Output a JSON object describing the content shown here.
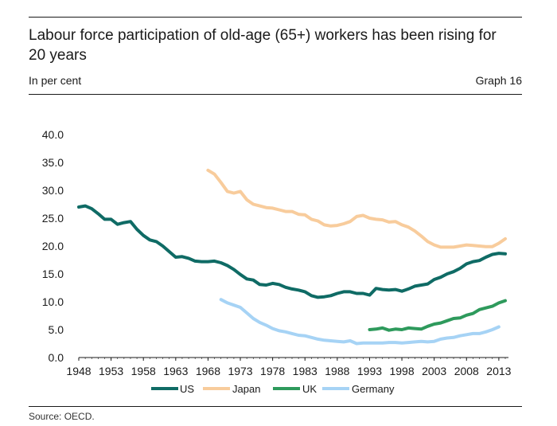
{
  "header": {
    "title": "Labour force participation of old-age (65+) workers has been rising for 20 years",
    "unit": "In per cent",
    "graph_number": "Graph 16"
  },
  "footer": {
    "source": "Source: OECD."
  },
  "chart_data": {
    "type": "line",
    "title": "Labour force participation of old-age (65+) workers has been rising for 20 years",
    "xlabel": "",
    "ylabel": "In per cent",
    "xlim": [
      1948,
      2014
    ],
    "ylim": [
      0,
      40
    ],
    "yticks": [
      "0.0",
      "5.0",
      "10.0",
      "15.0",
      "20.0",
      "25.0",
      "30.0",
      "35.0",
      "40.0"
    ],
    "xticks": [
      "1948",
      "1953",
      "1958",
      "1963",
      "1968",
      "1973",
      "1978",
      "1983",
      "1988",
      "1993",
      "1998",
      "2003",
      "2008",
      "2013"
    ],
    "grid": false,
    "legend_position": "bottom",
    "series": [
      {
        "name": "US",
        "color": "#0f6b65",
        "x": [
          1948,
          1949,
          1950,
          1951,
          1952,
          1953,
          1954,
          1955,
          1956,
          1957,
          1958,
          1959,
          1960,
          1961,
          1962,
          1963,
          1964,
          1965,
          1966,
          1967,
          1968,
          1969,
          1970,
          1971,
          1972,
          1973,
          1974,
          1975,
          1976,
          1977,
          1978,
          1979,
          1980,
          1981,
          1982,
          1983,
          1984,
          1985,
          1986,
          1987,
          1988,
          1989,
          1990,
          1991,
          1992,
          1993,
          1994,
          1995,
          1996,
          1997,
          1998,
          1999,
          2000,
          2001,
          2002,
          2003,
          2004,
          2005,
          2006,
          2007,
          2008,
          2009,
          2010,
          2011,
          2012,
          2013,
          2014
        ],
        "y": [
          27.0,
          27.2,
          26.7,
          25.8,
          24.8,
          24.8,
          23.9,
          24.2,
          24.4,
          23.0,
          21.9,
          21.1,
          20.8,
          20.0,
          19.0,
          18.0,
          18.1,
          17.8,
          17.3,
          17.2,
          17.2,
          17.3,
          17.0,
          16.5,
          15.8,
          14.9,
          14.1,
          13.9,
          13.1,
          13.0,
          13.3,
          13.1,
          12.6,
          12.3,
          12.1,
          11.8,
          11.1,
          10.8,
          10.9,
          11.1,
          11.5,
          11.8,
          11.8,
          11.5,
          11.5,
          11.2,
          12.4,
          12.2,
          12.1,
          12.2,
          11.9,
          12.3,
          12.8,
          13.0,
          13.2,
          14.0,
          14.4,
          15.0,
          15.4,
          16.0,
          16.8,
          17.2,
          17.4,
          18.0,
          18.5,
          18.7,
          18.6
        ]
      },
      {
        "name": "Japan",
        "color": "#f8cc9c",
        "x": [
          1968,
          1969,
          1970,
          1971,
          1972,
          1973,
          1974,
          1975,
          1976,
          1977,
          1978,
          1979,
          1980,
          1981,
          1982,
          1983,
          1984,
          1985,
          1986,
          1987,
          1988,
          1989,
          1990,
          1991,
          1992,
          1993,
          1994,
          1995,
          1996,
          1997,
          1998,
          1999,
          2000,
          2001,
          2002,
          2003,
          2004,
          2005,
          2006,
          2007,
          2008,
          2009,
          2010,
          2011,
          2012,
          2013,
          2014
        ],
        "y": [
          33.6,
          32.9,
          31.4,
          29.8,
          29.5,
          29.8,
          28.3,
          27.5,
          27.2,
          26.9,
          26.8,
          26.5,
          26.2,
          26.2,
          25.7,
          25.6,
          24.8,
          24.5,
          23.8,
          23.6,
          23.7,
          24.0,
          24.4,
          25.3,
          25.5,
          25.0,
          24.8,
          24.7,
          24.3,
          24.4,
          23.8,
          23.4,
          22.7,
          21.8,
          20.8,
          20.2,
          19.8,
          19.8,
          19.8,
          20.0,
          20.2,
          20.1,
          20.0,
          19.9,
          19.9,
          20.5,
          21.3
        ]
      },
      {
        "name": "UK",
        "color": "#2e9a5c",
        "x": [
          1993,
          1994,
          1995,
          1996,
          1997,
          1998,
          1999,
          2000,
          2001,
          2002,
          2003,
          2004,
          2005,
          2006,
          2007,
          2008,
          2009,
          2010,
          2011,
          2012,
          2013,
          2014
        ],
        "y": [
          5.0,
          5.1,
          5.3,
          4.9,
          5.1,
          5.0,
          5.3,
          5.2,
          5.1,
          5.6,
          6.0,
          6.2,
          6.6,
          7.0,
          7.1,
          7.6,
          7.9,
          8.6,
          8.9,
          9.2,
          9.8,
          10.2
        ]
      },
      {
        "name": "Germany",
        "color": "#a6d3f5",
        "x": [
          1970,
          1971,
          1972,
          1973,
          1974,
          1975,
          1976,
          1977,
          1978,
          1979,
          1980,
          1981,
          1982,
          1983,
          1984,
          1985,
          1986,
          1987,
          1988,
          1989,
          1990,
          1991,
          1992,
          1993,
          1994,
          1995,
          1996,
          1997,
          1998,
          1999,
          2000,
          2001,
          2002,
          2003,
          2004,
          2005,
          2006,
          2007,
          2008,
          2009,
          2010,
          2011,
          2012,
          2013
        ],
        "y": [
          10.4,
          9.8,
          9.4,
          9.0,
          8.0,
          7.0,
          6.3,
          5.8,
          5.2,
          4.8,
          4.6,
          4.3,
          4.0,
          3.9,
          3.6,
          3.3,
          3.1,
          3.0,
          2.9,
          2.8,
          3.0,
          2.5,
          2.6,
          2.6,
          2.6,
          2.6,
          2.7,
          2.7,
          2.6,
          2.7,
          2.8,
          2.9,
          2.8,
          2.9,
          3.3,
          3.5,
          3.6,
          3.9,
          4.1,
          4.3,
          4.3,
          4.6,
          5.0,
          5.5
        ]
      }
    ]
  }
}
